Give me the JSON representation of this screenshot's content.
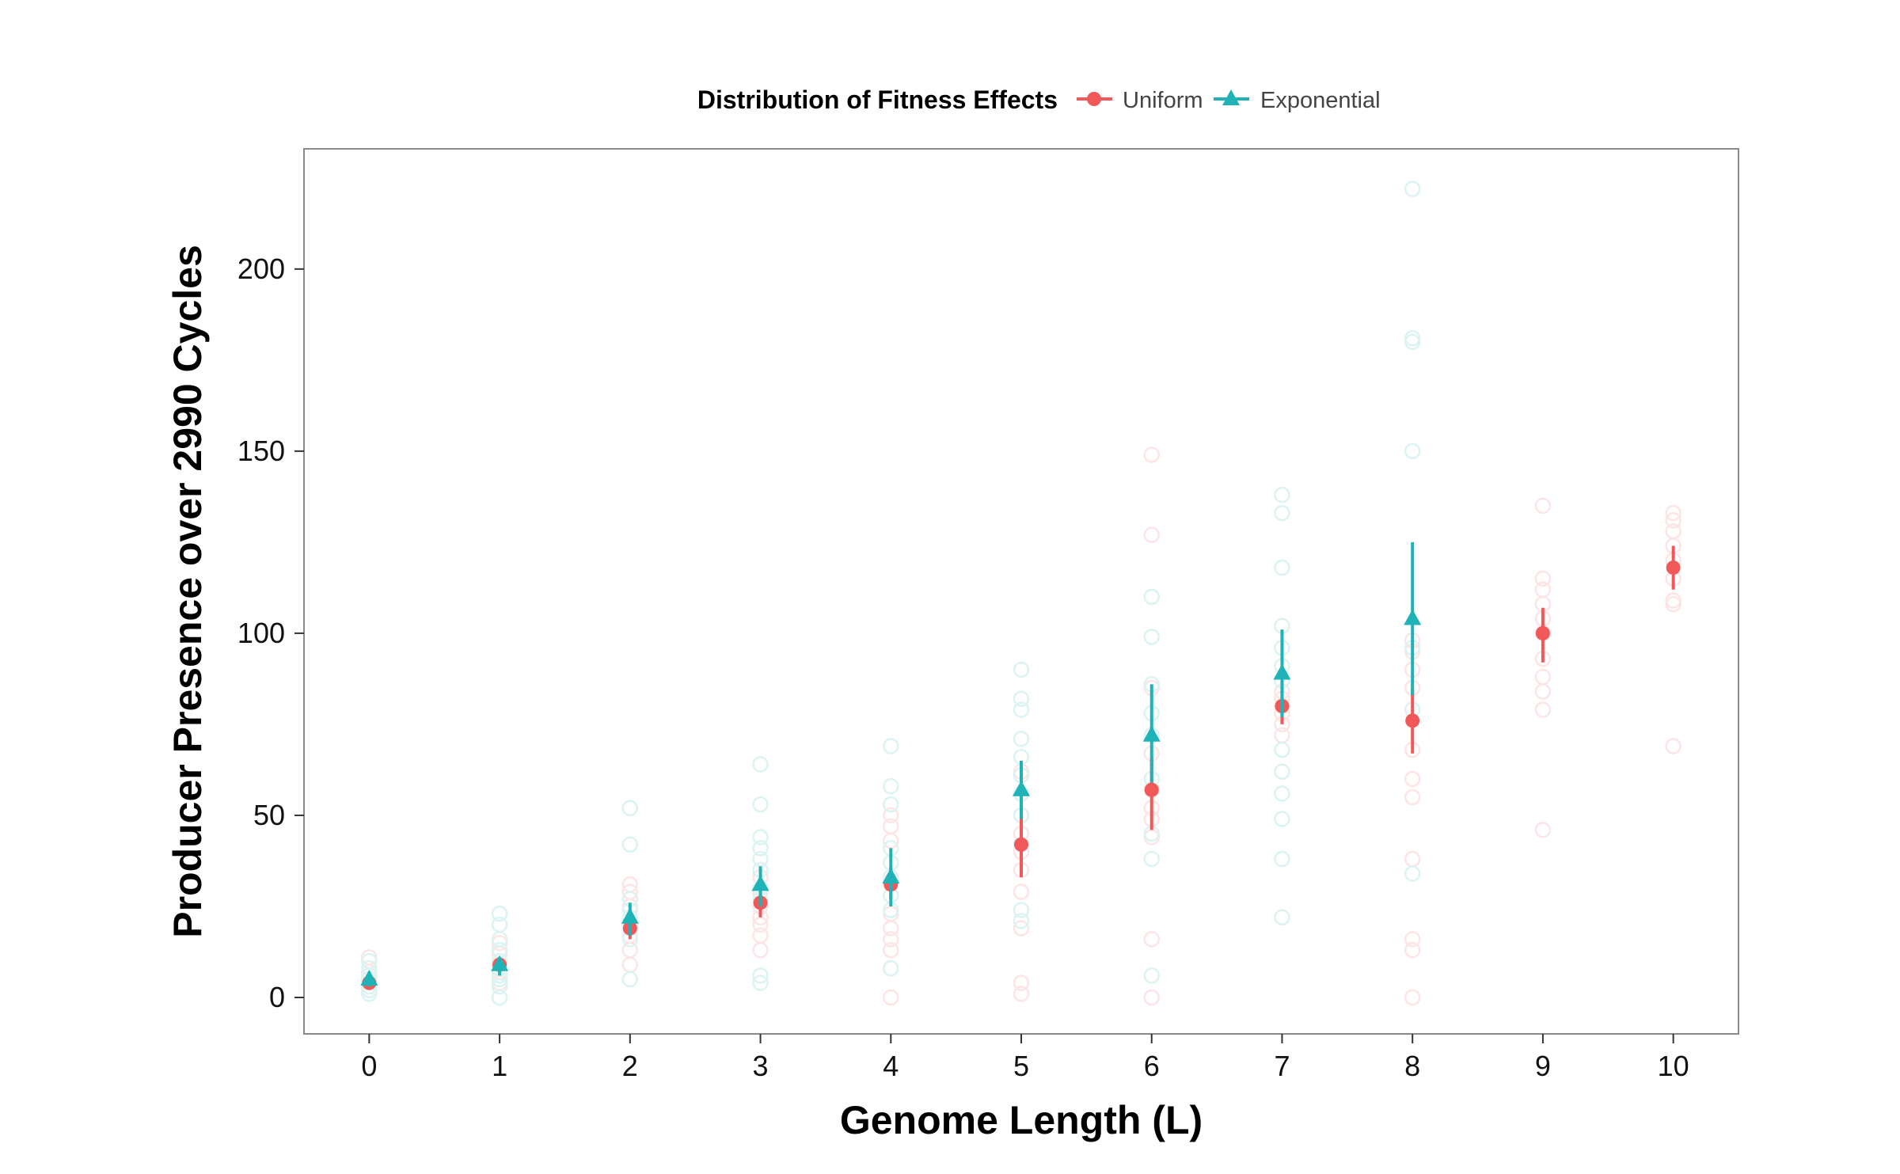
{
  "chart_data": {
    "type": "scatter",
    "xlabel": "Genome Length (L)",
    "ylabel": "Producer Presence over 2990 Cycles",
    "xlim": [
      -0.5,
      10.5
    ],
    "ylim": [
      -10,
      233
    ],
    "x_ticks": [
      "0",
      "1",
      "2",
      "3",
      "4",
      "5",
      "6",
      "7",
      "8",
      "9",
      "10"
    ],
    "y_ticks": [
      "0",
      "50",
      "100",
      "150",
      "200"
    ],
    "grid": false,
    "legend": {
      "title": "Distribution of Fitness Effects",
      "position": "top",
      "entries": [
        "Uniform",
        "Exponential"
      ]
    },
    "series": [
      {
        "name": "Uniform",
        "color": "#F0585A",
        "marker": "circle",
        "mean": [
          {
            "x": 0,
            "y": 4,
            "lo": 3,
            "hi": 5
          },
          {
            "x": 1,
            "y": 9,
            "lo": 7,
            "hi": 11
          },
          {
            "x": 2,
            "y": 19,
            "lo": 16,
            "hi": 22
          },
          {
            "x": 3,
            "y": 26,
            "lo": 22,
            "hi": 30
          },
          {
            "x": 4,
            "y": 31,
            "lo": 27,
            "hi": 36
          },
          {
            "x": 5,
            "y": 42,
            "lo": 33,
            "hi": 50
          },
          {
            "x": 6,
            "y": 57,
            "lo": 46,
            "hi": 66
          },
          {
            "x": 7,
            "y": 80,
            "lo": 75,
            "hi": 85
          },
          {
            "x": 8,
            "y": 76,
            "lo": 67,
            "hi": 85
          },
          {
            "x": 9,
            "y": 100,
            "lo": 92,
            "hi": 107
          },
          {
            "x": 10,
            "y": 118,
            "lo": 112,
            "hi": 124
          }
        ],
        "observations": [
          {
            "x": 0,
            "y": [
              2,
              3,
              4,
              5,
              7,
              11
            ]
          },
          {
            "x": 1,
            "y": [
              4,
              7,
              9,
              12,
              15
            ]
          },
          {
            "x": 2,
            "y": [
              9,
              13,
              17,
              20,
              25,
              29,
              31
            ]
          },
          {
            "x": 3,
            "y": [
              13,
              17,
              20,
              22,
              25,
              29,
              33
            ]
          },
          {
            "x": 4,
            "y": [
              0,
              8,
              13,
              16,
              19,
              23,
              28,
              32,
              37,
              43,
              47,
              50
            ]
          },
          {
            "x": 5,
            "y": [
              1,
              4,
              19,
              29,
              35,
              40,
              45,
              50,
              56,
              62
            ]
          },
          {
            "x": 6,
            "y": [
              0,
              16,
              44,
              49,
              52,
              57,
              67,
              85,
              127,
              149
            ]
          },
          {
            "x": 7,
            "y": [
              72,
              75,
              78,
              80,
              82,
              84
            ]
          },
          {
            "x": 8,
            "y": [
              0,
              13,
              16,
              38,
              55,
              60,
              68,
              79,
              85,
              90,
              95,
              98
            ]
          },
          {
            "x": 9,
            "y": [
              46,
              79,
              84,
              88,
              93,
              100,
              104,
              108,
              112,
              115,
              135
            ]
          },
          {
            "x": 10,
            "y": [
              69,
              108,
              109,
              115,
              120,
              124,
              128,
              131,
              133
            ]
          }
        ]
      },
      {
        "name": "Exponential",
        "color": "#1FB2B6",
        "marker": "triangle",
        "mean": [
          {
            "x": 0,
            "y": 5,
            "lo": 3,
            "hi": 7
          },
          {
            "x": 1,
            "y": 9,
            "lo": 6,
            "hi": 11
          },
          {
            "x": 2,
            "y": 22,
            "lo": 17,
            "hi": 26
          },
          {
            "x": 3,
            "y": 31,
            "lo": 25,
            "hi": 36
          },
          {
            "x": 4,
            "y": 33,
            "lo": 25,
            "hi": 41
          },
          {
            "x": 5,
            "y": 57,
            "lo": 49,
            "hi": 65
          },
          {
            "x": 6,
            "y": 72,
            "lo": 59,
            "hi": 86
          },
          {
            "x": 7,
            "y": 89,
            "lo": 77,
            "hi": 101
          },
          {
            "x": 8,
            "y": 104,
            "lo": 83,
            "hi": 125
          },
          {
            "x": 9,
            "y": null,
            "lo": null,
            "hi": null
          },
          {
            "x": 10,
            "y": null,
            "lo": null,
            "hi": null
          }
        ],
        "observations": [
          {
            "x": 0,
            "y": [
              1,
              2,
              3,
              4,
              5,
              6,
              8,
              10
            ]
          },
          {
            "x": 1,
            "y": [
              0,
              3,
              5,
              6,
              8,
              10,
              13,
              16,
              20,
              23
            ]
          },
          {
            "x": 2,
            "y": [
              5,
              16,
              19,
              22,
              24,
              27,
              42,
              52
            ]
          },
          {
            "x": 3,
            "y": [
              4,
              6,
              27,
              30,
              35,
              38,
              41,
              44,
              53,
              64
            ]
          },
          {
            "x": 4,
            "y": [
              8,
              24,
              28,
              33,
              37,
              41,
              53,
              58,
              69
            ]
          },
          {
            "x": 5,
            "y": [
              21,
              24,
              42,
              50,
              56,
              61,
              66,
              71,
              79,
              82,
              90
            ]
          },
          {
            "x": 6,
            "y": [
              6,
              38,
              45,
              60,
              72,
              78,
              86,
              99,
              110
            ]
          },
          {
            "x": 7,
            "y": [
              22,
              38,
              49,
              56,
              62,
              68,
              87,
              91,
              96,
              102,
              118,
              133,
              138
            ]
          },
          {
            "x": 8,
            "y": [
              34,
              79,
              96,
              150,
              180,
              181,
              222
            ]
          },
          {
            "x": 9,
            "y": []
          },
          {
            "x": 10,
            "y": []
          }
        ]
      }
    ]
  }
}
